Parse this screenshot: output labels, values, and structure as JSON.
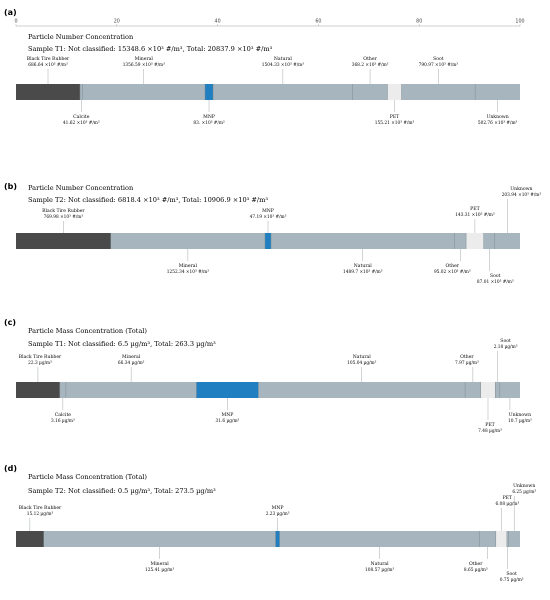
{
  "colors": {
    "black_tire": "#4a4a4a",
    "default": "#a7b6be",
    "mnp": "#1f7fc1",
    "pet": "#ececec",
    "divider": "#7f8c93",
    "leader": "#8c9499"
  },
  "axis": {
    "min": 0,
    "max": 100,
    "ticks": [
      "0",
      "20",
      "40",
      "60",
      "80",
      "100"
    ]
  },
  "chart_data": [
    {
      "type": "stacked-bar",
      "panel": "(a)",
      "title": "Particle Number Concentration",
      "subtitle": "Sample T1: Not classified: 15348.6 ×10³ #/m³, Total: 20837.9 ×10³ #/m³",
      "segments": [
        {
          "name": "Black Tire Rubber",
          "value": "686.64 ×10³ #/m³",
          "start": 0,
          "end": 12.7,
          "color": "black_tire",
          "label_pos": "above"
        },
        {
          "name": "Calcite",
          "value": "41.62 ×10³ #/m³",
          "start": 12.7,
          "end": 13.2,
          "color": "default",
          "label_pos": "below"
        },
        {
          "name": "Mineral",
          "value": "1356.59 ×10³ #/m³",
          "start": 13.2,
          "end": 37.5,
          "color": "default",
          "label_pos": "above"
        },
        {
          "name": "MNP",
          "value": "83. ×10³ #/m³",
          "start": 37.5,
          "end": 39.1,
          "color": "mnp",
          "label_pos": "below"
        },
        {
          "name": "Natural",
          "value": "1504.33 ×10³ #/m³",
          "start": 39.1,
          "end": 66.8,
          "color": "default",
          "label_pos": "above"
        },
        {
          "name": "Other",
          "value": "368.2 ×10³ #/m³",
          "start": 66.8,
          "end": 73.7,
          "color": "default",
          "label_pos": "above"
        },
        {
          "name": "PET",
          "value": "155.21 ×10³ #/m³",
          "start": 73.7,
          "end": 76.5,
          "color": "pet",
          "label_pos": "below"
        },
        {
          "name": "Soot",
          "value": "790.97 ×10³ #/m³",
          "start": 76.5,
          "end": 91.1,
          "color": "default",
          "label_pos": "above"
        },
        {
          "name": "Unknown",
          "value": "502.76 ×10³ #/m³",
          "start": 91.1,
          "end": 100,
          "color": "default",
          "label_pos": "below"
        }
      ]
    },
    {
      "type": "stacked-bar",
      "panel": "(b)",
      "title": "Particle Number Concentration",
      "subtitle": "Sample T2: Not classified: 6818.4 ×10³ #/m³, Total: 10906.9 ×10³ #/m³",
      "segments": [
        {
          "name": "Black Tire Rubber",
          "value": "769.98 ×10³ #/m³",
          "start": 0,
          "end": 18.8,
          "color": "black_tire",
          "label_pos": "above"
        },
        {
          "name": "Mineral",
          "value": "1252.34 ×10³ #/m³",
          "start": 18.8,
          "end": 49.4,
          "color": "default",
          "label_pos": "below"
        },
        {
          "name": "MNP",
          "value": "47.19 ×10³ #/m³",
          "start": 49.4,
          "end": 50.6,
          "color": "mnp",
          "label_pos": "above"
        },
        {
          "name": "Natural",
          "value": "1489.7 ×10³ #/m³",
          "start": 50.6,
          "end": 87.0,
          "color": "default",
          "label_pos": "below"
        },
        {
          "name": "Other",
          "value": "95.02 ×10³ #/m³",
          "start": 87.0,
          "end": 89.3,
          "color": "default",
          "label_pos": "below"
        },
        {
          "name": "PET",
          "value": "143.31 ×10³ #/m³",
          "start": 89.3,
          "end": 92.8,
          "color": "pet",
          "label_pos": "above"
        },
        {
          "name": "Soot",
          "value": "87.01 ×10³ #/m³",
          "start": 92.8,
          "end": 95.0,
          "color": "default",
          "label_pos": "below"
        },
        {
          "name": "Unknown",
          "value": "203.94 ×10³ #/m³",
          "start": 95.0,
          "end": 100,
          "color": "default",
          "label_pos": "above"
        }
      ]
    },
    {
      "type": "stacked-bar",
      "panel": "(c)",
      "title": "Particle Mass Concentration (Total)",
      "subtitle": "Sample T1: Not classified: 6.5 µg/m³, Total: 263.3 µg/m³",
      "segments": [
        {
          "name": "Black Tire Rubber",
          "value": "22.3 µg/m³",
          "start": 0,
          "end": 8.7,
          "color": "black_tire",
          "label_pos": "above"
        },
        {
          "name": "Calcite",
          "value": "3.16 µg/m³",
          "start": 8.7,
          "end": 9.9,
          "color": "default",
          "label_pos": "below"
        },
        {
          "name": "Mineral",
          "value": "66.34 µg/m³",
          "start": 9.9,
          "end": 35.8,
          "color": "default",
          "label_pos": "above"
        },
        {
          "name": "MNP",
          "value": "31.6 µg/m³",
          "start": 35.8,
          "end": 48.1,
          "color": "mnp",
          "label_pos": "below"
        },
        {
          "name": "Natural",
          "value": "105.04 µg/m³",
          "start": 48.1,
          "end": 89.1,
          "color": "default",
          "label_pos": "above"
        },
        {
          "name": "Other",
          "value": "7.97 µg/m³",
          "start": 89.1,
          "end": 92.2,
          "color": "default",
          "label_pos": "above"
        },
        {
          "name": "PET",
          "value": "7.48 µg/m³",
          "start": 92.2,
          "end": 95.1,
          "color": "pet",
          "label_pos": "below"
        },
        {
          "name": "Soot",
          "value": "2.18 µg/m³",
          "start": 95.1,
          "end": 96.0,
          "color": "default",
          "label_pos": "above"
        },
        {
          "name": "Unknown",
          "value": "10.7 µg/m³",
          "start": 96.0,
          "end": 100,
          "color": "default",
          "label_pos": "below"
        }
      ]
    },
    {
      "type": "stacked-bar",
      "panel": "(d)",
      "title": "Particle Mass Concentration (Total)",
      "subtitle": "Sample T2: Not classified: 0.5 µg/m³, Total: 273.5 µg/m³",
      "segments": [
        {
          "name": "Black Tire Rubber",
          "value": "15.12 µg/m³",
          "start": 0,
          "end": 5.5,
          "color": "black_tire",
          "label_pos": "above"
        },
        {
          "name": "Mineral",
          "value": "125.41 µg/m³",
          "start": 5.5,
          "end": 51.5,
          "color": "default",
          "label_pos": "below"
        },
        {
          "name": "MNP",
          "value": "2.23 µg/m³",
          "start": 51.5,
          "end": 52.3,
          "color": "mnp",
          "label_pos": "above"
        },
        {
          "name": "Natural",
          "value": "108.57 µg/m³",
          "start": 52.3,
          "end": 92.0,
          "color": "default",
          "label_pos": "below"
        },
        {
          "name": "Other",
          "value": "8.65 µg/m³",
          "start": 92.0,
          "end": 95.2,
          "color": "default",
          "label_pos": "below"
        },
        {
          "name": "PET",
          "value": "6.08 µg/m³",
          "start": 95.2,
          "end": 97.4,
          "color": "pet",
          "label_pos": "above"
        },
        {
          "name": "Soot",
          "value": "0.75 µg/m³",
          "start": 97.4,
          "end": 97.7,
          "color": "default",
          "label_pos": "below"
        },
        {
          "name": "Unknown",
          "value": "6.25 µg/m³",
          "start": 97.7,
          "end": 100,
          "color": "default",
          "label_pos": "above"
        }
      ]
    }
  ]
}
